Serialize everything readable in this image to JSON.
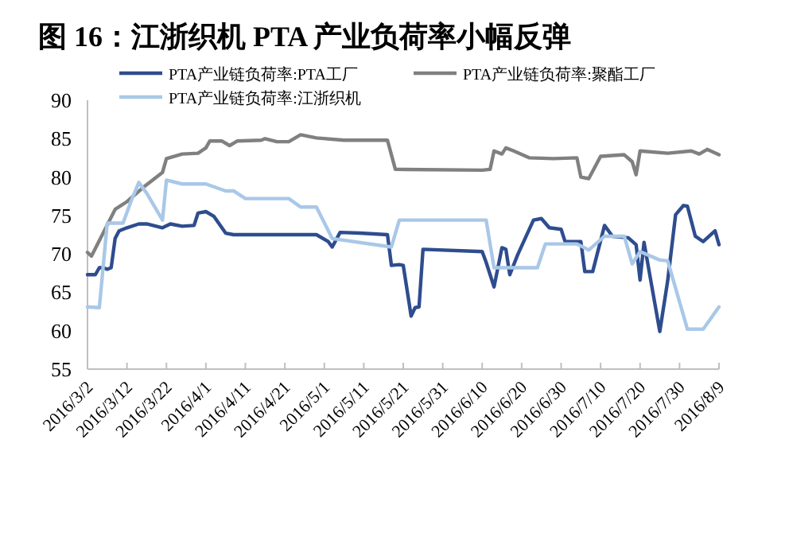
{
  "chart_data": {
    "type": "line",
    "title": "图 16：江浙织机 PTA 产业负荷率小幅反弹",
    "xlim": [
      "2016-03-02",
      "2016-08-09"
    ],
    "xticks": [
      {
        "value": "2016-03-02",
        "label": "2016/3/2"
      },
      {
        "value": "2016-03-12",
        "label": "2016/3/12"
      },
      {
        "value": "2016-03-22",
        "label": "2016/3/22"
      },
      {
        "value": "2016-04-01",
        "label": "2016/4/1"
      },
      {
        "value": "2016-04-11",
        "label": "2016/4/11"
      },
      {
        "value": "2016-04-21",
        "label": "2016/4/21"
      },
      {
        "value": "2016-05-01",
        "label": "2016/5/1"
      },
      {
        "value": "2016-05-11",
        "label": "2016/5/11"
      },
      {
        "value": "2016-05-21",
        "label": "2016/5/21"
      },
      {
        "value": "2016-05-31",
        "label": "2016/5/31"
      },
      {
        "value": "2016-06-10",
        "label": "2016/6/10"
      },
      {
        "value": "2016-06-20",
        "label": "2016/6/20"
      },
      {
        "value": "2016-06-30",
        "label": "2016/6/30"
      },
      {
        "value": "2016-07-10",
        "label": "2016/7/10"
      },
      {
        "value": "2016-07-20",
        "label": "2016/7/20"
      },
      {
        "value": "2016-07-30",
        "label": "2016/7/30"
      },
      {
        "value": "2016-08-09",
        "label": "2016/8/9"
      }
    ],
    "ylim": [
      55,
      90
    ],
    "yticks": [
      55,
      60,
      65,
      70,
      75,
      80,
      85,
      90
    ],
    "grid": false,
    "legend": "top",
    "marker": "none",
    "line_style": "solid",
    "series": [
      {
        "name": "PTA产业链负荷率:PTA工厂",
        "color": "#2e4d8e",
        "x": [
          "2016-03-02",
          "2016-03-04",
          "2016-03-05",
          "2016-03-06",
          "2016-03-07",
          "2016-03-08",
          "2016-03-09",
          "2016-03-10",
          "2016-03-12",
          "2016-03-15",
          "2016-03-17",
          "2016-03-21",
          "2016-03-23",
          "2016-03-26",
          "2016-03-29",
          "2016-03-30",
          "2016-04-01",
          "2016-04-03",
          "2016-04-06",
          "2016-04-08",
          "2016-04-29",
          "2016-05-02",
          "2016-05-03",
          "2016-05-05",
          "2016-05-10",
          "2016-05-17",
          "2016-05-18",
          "2016-05-20",
          "2016-05-21",
          "2016-05-23",
          "2016-05-24",
          "2016-05-25",
          "2016-05-26",
          "2016-06-10",
          "2016-06-11",
          "2016-06-13",
          "2016-06-15",
          "2016-06-16",
          "2016-06-17",
          "2016-06-19",
          "2016-06-23",
          "2016-06-25",
          "2016-06-27",
          "2016-06-30",
          "2016-07-01",
          "2016-07-05",
          "2016-07-06",
          "2016-07-08",
          "2016-07-11",
          "2016-07-13",
          "2016-07-17",
          "2016-07-19",
          "2016-07-20",
          "2016-07-21",
          "2016-07-25",
          "2016-07-27",
          "2016-07-29",
          "2016-07-31",
          "2016-08-01",
          "2016-08-03",
          "2016-08-05",
          "2016-08-08",
          "2016-08-09"
        ],
        "values": [
          67.3,
          67.3,
          68.2,
          68.2,
          68,
          68.2,
          72,
          73,
          73.4,
          73.9,
          73.9,
          73.4,
          73.9,
          73.6,
          73.7,
          75.3,
          75.5,
          74.9,
          72.7,
          72.5,
          72.5,
          71.6,
          70.9,
          72.8,
          72.7,
          72.5,
          68.5,
          68.6,
          68.5,
          61.9,
          63,
          63.1,
          70.6,
          70.3,
          68.9,
          65.7,
          70.8,
          70.6,
          67.3,
          69.9,
          74.4,
          74.6,
          73.4,
          73.2,
          71.6,
          71.6,
          67.7,
          67.7,
          73.7,
          72.3,
          72.1,
          71.2,
          66.6,
          71.5,
          59.9,
          66.5,
          75.1,
          76.3,
          76.2,
          72.3,
          71.6,
          73,
          71.2
        ]
      },
      {
        "name": "PTA产业链负荷率:聚酯工厂",
        "color": "#808080",
        "x": [
          "2016-03-02",
          "2016-03-03",
          "2016-03-09",
          "2016-03-12",
          "2016-03-16",
          "2016-03-21",
          "2016-03-22",
          "2016-03-26",
          "2016-03-30",
          "2016-04-01",
          "2016-04-02",
          "2016-04-05",
          "2016-04-07",
          "2016-04-09",
          "2016-04-15",
          "2016-04-16",
          "2016-04-19",
          "2016-04-22",
          "2016-04-25",
          "2016-04-29",
          "2016-05-06",
          "2016-05-17",
          "2016-05-19",
          "2016-06-10",
          "2016-06-12",
          "2016-06-13",
          "2016-06-15",
          "2016-06-16",
          "2016-06-18",
          "2016-06-22",
          "2016-06-28",
          "2016-07-04",
          "2016-07-05",
          "2016-07-07",
          "2016-07-10",
          "2016-07-16",
          "2016-07-18",
          "2016-07-19",
          "2016-07-20",
          "2016-07-27",
          "2016-08-02",
          "2016-08-04",
          "2016-08-06",
          "2016-08-09"
        ],
        "values": [
          70.2,
          69.7,
          75.8,
          76.8,
          78.6,
          80.6,
          82.4,
          83,
          83.1,
          83.8,
          84.7,
          84.7,
          84.1,
          84.7,
          84.8,
          85,
          84.6,
          84.6,
          85.5,
          85.1,
          84.8,
          84.8,
          81,
          80.9,
          81,
          83.4,
          83,
          83.8,
          83.4,
          82.5,
          82.4,
          82.5,
          80,
          79.8,
          82.7,
          82.9,
          82,
          80.3,
          83.4,
          83.1,
          83.4,
          83,
          83.6,
          82.9
        ]
      },
      {
        "name": "PTA产业链负荷率:江浙织机",
        "color": "#a9c8e8",
        "x": [
          "2016-03-02",
          "2016-03-05",
          "2016-03-07",
          "2016-03-11",
          "2016-03-13",
          "2016-03-15",
          "2016-03-17",
          "2016-03-21",
          "2016-03-22",
          "2016-03-26",
          "2016-04-01",
          "2016-04-06",
          "2016-04-08",
          "2016-04-11",
          "2016-04-22",
          "2016-04-25",
          "2016-04-29",
          "2016-05-03",
          "2016-05-18",
          "2016-05-20",
          "2016-06-11",
          "2016-06-13",
          "2016-06-24",
          "2016-06-26",
          "2016-07-04",
          "2016-07-07",
          "2016-07-11",
          "2016-07-16",
          "2016-07-18",
          "2016-07-20",
          "2016-07-25",
          "2016-07-27",
          "2016-08-01",
          "2016-08-05",
          "2016-08-09"
        ],
        "values": [
          63.1,
          63,
          74,
          74,
          76.8,
          79.3,
          77.9,
          74.4,
          79.6,
          79.1,
          79.1,
          78.2,
          78.2,
          77.2,
          77.2,
          76.1,
          76.1,
          72,
          70.9,
          74.4,
          74.4,
          68.2,
          68.2,
          71.3,
          71.3,
          70.5,
          72.3,
          72.3,
          68.7,
          70.3,
          69.2,
          69.1,
          60.2,
          60.2,
          63.1
        ]
      }
    ]
  }
}
